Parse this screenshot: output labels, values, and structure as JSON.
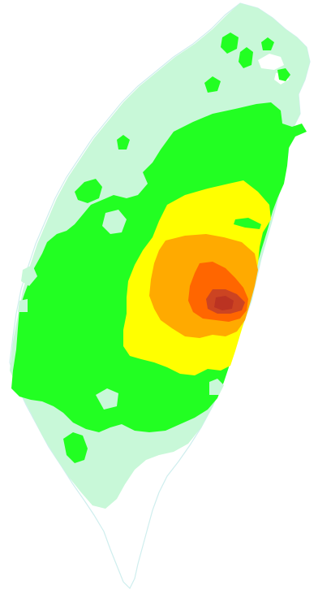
{
  "map": {
    "colors": {
      "background": "#ffffff",
      "outline": "#cfeeee",
      "level_1": "#c8f8d8",
      "level_2": "#22ff22",
      "level_3": "#ffff00",
      "level_4": "#ffaa00",
      "level_5": "#ff6600",
      "level_6": "#cc4422",
      "level_7": "#bb3322"
    }
  }
}
